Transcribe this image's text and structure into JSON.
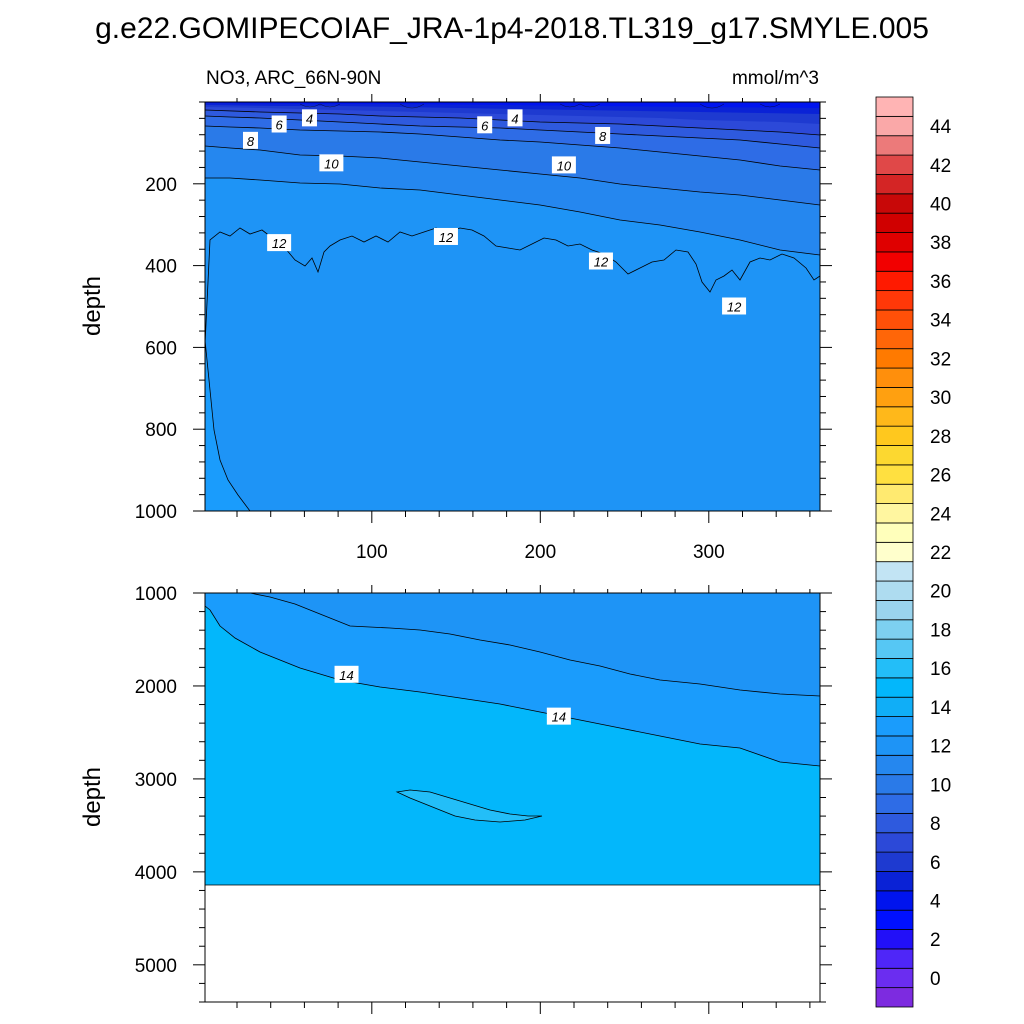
{
  "page": {
    "title": "g.e22.GOMIPECOIAF_JRA-1p4-2018.TL319_g17.SMYLE.005",
    "left_subtitle": "NO3, ARC_66N-90N",
    "right_subtitle": "mmol/m^3"
  },
  "chart_data": [
    {
      "type": "contour",
      "name": "upper-panel",
      "variable": "NO3",
      "region": "ARC_66N-90N",
      "units": "mmol/m^3",
      "xlabel": "",
      "ylabel": "depth",
      "xlim": [
        1,
        366
      ],
      "ylim": [
        1000,
        0
      ],
      "x_ticks": [
        100,
        200,
        300
      ],
      "x_tick_labels": [
        "100",
        "200",
        "300"
      ],
      "y_ticks": [
        200,
        400,
        600,
        800,
        1000
      ],
      "y_tick_labels": [
        "200",
        "400",
        "600",
        "800",
        "1000"
      ],
      "contour_labels": [
        {
          "text": "4",
          "x": 63,
          "y": 40
        },
        {
          "text": "4",
          "x": 185,
          "y": 40
        },
        {
          "text": "6",
          "x": 45,
          "y": 55
        },
        {
          "text": "6",
          "x": 167,
          "y": 57
        },
        {
          "text": "8",
          "x": 28,
          "y": 95
        },
        {
          "text": "8",
          "x": 237,
          "y": 83
        },
        {
          "text": "10",
          "x": 76,
          "y": 150
        },
        {
          "text": "10",
          "x": 214,
          "y": 155
        },
        {
          "text": "12",
          "x": 45,
          "y": 345
        },
        {
          "text": "12",
          "x": 144,
          "y": 330
        },
        {
          "text": "12",
          "x": 236,
          "y": 390
        },
        {
          "text": "12",
          "x": 315,
          "y": 500
        }
      ]
    },
    {
      "type": "contour",
      "name": "lower-panel",
      "variable": "NO3",
      "units": "mmol/m^3",
      "xlabel": "",
      "ylabel": "depth",
      "xlim": [
        1,
        366
      ],
      "ylim": [
        5400,
        1000
      ],
      "x_ticks": [
        100,
        200,
        300
      ],
      "y_ticks": [
        1000,
        2000,
        3000,
        4000,
        5000
      ],
      "y_tick_labels": [
        "1000",
        "2000",
        "3000",
        "4000",
        "5000"
      ],
      "ocean_bottom_depth": 4130,
      "contour_labels": [
        {
          "text": "14",
          "x": 85,
          "y": 1880
        },
        {
          "text": "14",
          "x": 211,
          "y": 2330
        }
      ]
    },
    {
      "type": "colorbar",
      "name": "colorbar",
      "levels": [
        -1,
        0,
        1,
        2,
        3,
        4,
        5,
        6,
        7,
        8,
        9,
        10,
        11,
        12,
        13,
        14,
        15,
        16,
        17,
        18,
        19,
        20,
        21,
        22,
        23,
        24,
        25,
        26,
        27,
        28,
        29,
        30,
        31,
        32,
        33,
        34,
        35,
        36,
        37,
        38,
        39,
        40,
        41,
        42,
        43,
        44,
        45,
        46
      ],
      "tick_labels": [
        "0",
        "2",
        "4",
        "6",
        "8",
        "10",
        "12",
        "14",
        "16",
        "18",
        "20",
        "22",
        "24",
        "26",
        "28",
        "30",
        "32",
        "34",
        "36",
        "38",
        "40",
        "42",
        "44"
      ],
      "colors": [
        "#7d2be0",
        "#6b2df0",
        "#4f26f8",
        "#2210f8",
        "#0010ff",
        "#0014ee",
        "#0a22d6",
        "#1e3ad0",
        "#2c49d8",
        "#2e5ade",
        "#2e6ce6",
        "#2a7ae8",
        "#2587ef",
        "#1e94f6",
        "#1a9cfc",
        "#10aef7",
        "#03b7fb",
        "#23bef8",
        "#56c7f4",
        "#7dd0f0",
        "#9ad4ee",
        "#aedcf0",
        "#c2e4f4",
        "#ffffcc",
        "#ffffbb",
        "#fff6a0",
        "#ffea70",
        "#ffe040",
        "#fcd830",
        "#ffc81e",
        "#ffb81a",
        "#ffa010",
        "#ff8f0c",
        "#ff7a00",
        "#ff6608",
        "#ff5008",
        "#ff3808",
        "#ff1a00",
        "#f20000",
        "#df0000",
        "#d00000",
        "#c80808",
        "#d42525",
        "#e04848",
        "#ec7a7a",
        "#faa8a8",
        "#ffb4b4"
      ]
    }
  ]
}
